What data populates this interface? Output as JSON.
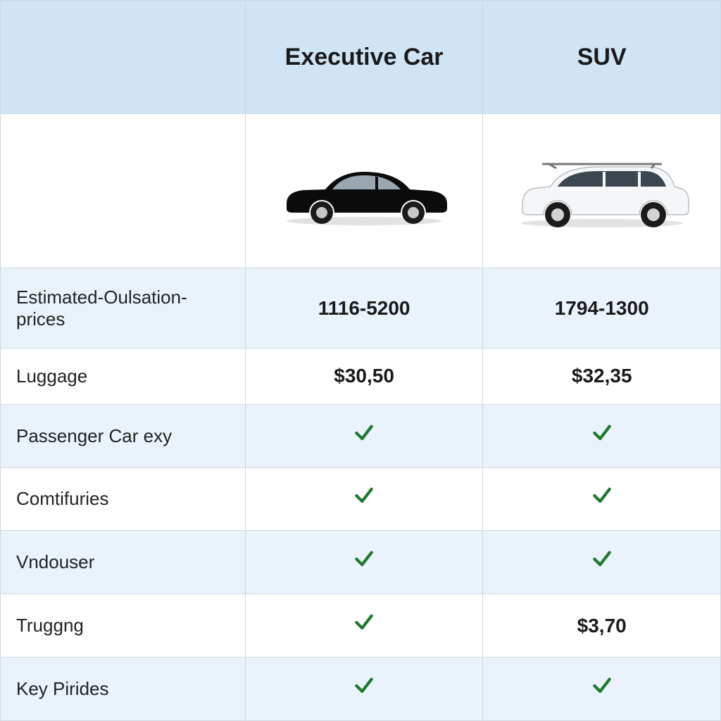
{
  "columns": {
    "col1": "Executive Car",
    "col2": "SUV"
  },
  "cars": {
    "executive": {
      "body_color": "#0b0b0c",
      "type": "sedan"
    },
    "suv": {
      "body_color": "#f5f6f7",
      "type": "suv"
    }
  },
  "rows": [
    {
      "label": "Estimated-Oulsation-prices",
      "c1": "1116-5200",
      "c2": "1794-1300",
      "alt": true,
      "c1_check": false,
      "c2_check": false,
      "bold": true
    },
    {
      "label": "Luggage",
      "c1": "$30,50",
      "c2": "$32,35",
      "alt": false,
      "c1_check": false,
      "c2_check": false,
      "bold": true
    },
    {
      "label": "Passenger Car exy",
      "c1": "",
      "c2": "",
      "alt": true,
      "c1_check": true,
      "c2_check": true,
      "bold": false
    },
    {
      "label": "Comtifuries",
      "c1": "",
      "c2": "",
      "alt": false,
      "c1_check": true,
      "c2_check": true,
      "bold": false
    },
    {
      "label": "Vndouser",
      "c1": "",
      "c2": "",
      "alt": true,
      "c1_check": true,
      "c2_check": true,
      "bold": false
    },
    {
      "label": "Truggng",
      "c1": "",
      "c2": "$3,70",
      "alt": false,
      "c1_check": true,
      "c2_check": false,
      "bold": true
    },
    {
      "label": "Key Pirides",
      "c1": "",
      "c2": "",
      "alt": true,
      "c1_check": true,
      "c2_check": true,
      "bold": false
    }
  ],
  "style": {
    "header_bg": "#cfe4f5",
    "alt_bg": "#eaf3fb",
    "plain_bg": "#ffffff",
    "border_color": "#d0d8e0",
    "check_color": "#1e7a2f",
    "header_fontsize": 34,
    "label_fontsize": 26,
    "value_fontsize": 28
  }
}
